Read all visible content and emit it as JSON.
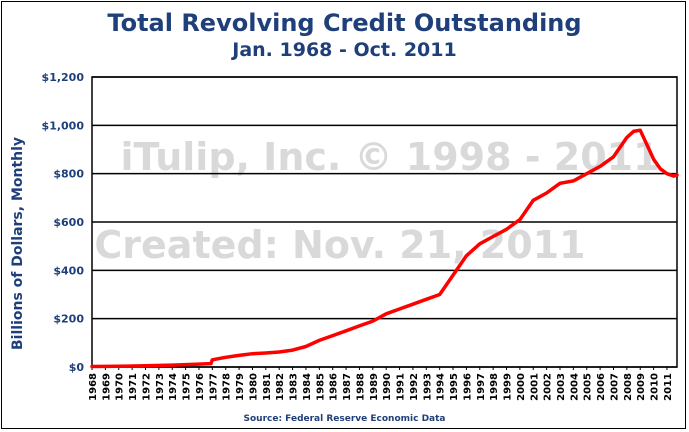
{
  "chart_data": {
    "type": "line",
    "title": "Total Revolving Credit Outstanding",
    "subtitle": "Jan. 1968 - Oct. 2011",
    "ylabel": "Billions of Dollars, Monthly",
    "xlabel": "",
    "source": "Source: Federal Reserve Economic Data",
    "watermarks": [
      "iTulip, Inc. © 1998 - 2011",
      "Created: Nov. 21, 2011"
    ],
    "ylim": [
      0,
      1200
    ],
    "xlim": [
      1968.0,
      2011.75
    ],
    "yticks": [
      {
        "value": 0,
        "label": "$0"
      },
      {
        "value": 200,
        "label": "$200"
      },
      {
        "value": 400,
        "label": "$400"
      },
      {
        "value": 600,
        "label": "$600"
      },
      {
        "value": 800,
        "label": "$800"
      },
      {
        "value": 1000,
        "label": "$1,000"
      },
      {
        "value": 1200,
        "label": "$1,200"
      }
    ],
    "xticks": [
      "1968",
      "1969",
      "1970",
      "1971",
      "1972",
      "1973",
      "1974",
      "1975",
      "1976",
      "1977",
      "1978",
      "1979",
      "1980",
      "1981",
      "1982",
      "1983",
      "1984",
      "1985",
      "1986",
      "1987",
      "1988",
      "1989",
      "1990",
      "1991",
      "1992",
      "1993",
      "1994",
      "1995",
      "1996",
      "1997",
      "1998",
      "1999",
      "2000",
      "2001",
      "2002",
      "2003",
      "2004",
      "2005",
      "2006",
      "2007",
      "2008",
      "2009",
      "2010",
      "2011"
    ],
    "grid": true,
    "line_color": "#ff0000",
    "series": [
      {
        "x": [
          1968.0,
          1970.0,
          1972.0,
          1974.0,
          1976.0,
          1976.9,
          1977.0,
          1978.0,
          1979.0,
          1980.0,
          1981.0,
          1982.0,
          1983.0,
          1984.0,
          1985.0,
          1986.0,
          1987.0,
          1988.0,
          1989.0,
          1990.0,
          1991.0,
          1992.0,
          1993.0,
          1994.0,
          1995.0,
          1996.0,
          1997.0,
          1998.0,
          1999.0,
          2000.0,
          2001.0,
          2002.0,
          2003.0,
          2004.0,
          2005.0,
          2006.0,
          2007.0,
          2008.0,
          2008.5,
          2009.0,
          2009.5,
          2010.0,
          2010.5,
          2011.0,
          2011.5,
          2011.75
        ],
        "y": [
          2,
          3,
          5,
          8,
          12,
          14,
          30,
          40,
          48,
          55,
          58,
          62,
          70,
          85,
          110,
          130,
          150,
          170,
          190,
          220,
          240,
          260,
          280,
          300,
          380,
          460,
          510,
          540,
          570,
          610,
          690,
          720,
          760,
          770,
          800,
          830,
          870,
          950,
          975,
          980,
          920,
          860,
          820,
          800,
          790,
          795
        ]
      }
    ]
  }
}
